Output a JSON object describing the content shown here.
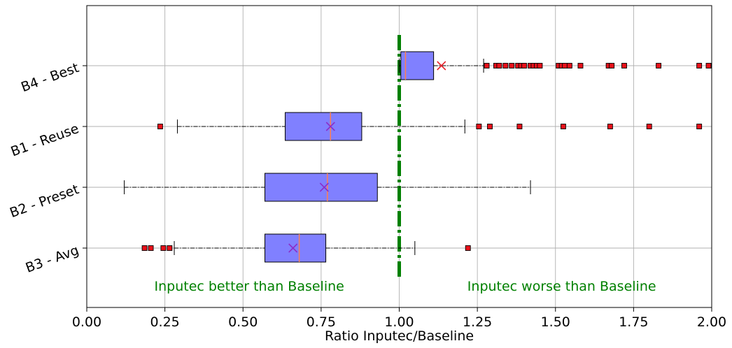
{
  "chart_data": {
    "type": "boxplot",
    "orientation": "horizontal",
    "xlabel": "Ratio Inputec/Baseline",
    "xlim": [
      0.0,
      2.0
    ],
    "xticks": [
      "0.00",
      "0.25",
      "0.50",
      "0.75",
      "1.00",
      "1.25",
      "1.50",
      "1.75",
      "2.00"
    ],
    "grid": true,
    "reference_line": {
      "x": 1.0,
      "color": "#008000",
      "style": "dash-dot"
    },
    "annotations": [
      {
        "text": "Inputec better than Baseline",
        "x": 0.52,
        "color": "#008000"
      },
      {
        "text": "Inputec worse than Baseline",
        "x": 1.52,
        "color": "#008000"
      }
    ],
    "colors": {
      "box_fill": "#8080ff",
      "box_edge": "#000000",
      "median": "#ff7f50",
      "mean_marker": "#8b2fc9",
      "mean_marker_b4": "#e8202a",
      "flier": "#e8101a",
      "grid": "#b0b0b0"
    },
    "categories": [
      "B4 - Best",
      "B1 - Reuse",
      "B2 - Preset",
      "B3 - Avg"
    ],
    "boxes": [
      {
        "name": "B4 - Best",
        "whisker_low": 1.0,
        "q1": 1.005,
        "median": 1.02,
        "q3": 1.11,
        "whisker_high": 1.27,
        "mean": 1.135,
        "fliers": [
          1.28,
          1.31,
          1.32,
          1.34,
          1.36,
          1.38,
          1.39,
          1.4,
          1.42,
          1.43,
          1.44,
          1.45,
          1.51,
          1.52,
          1.53,
          1.545,
          1.58,
          1.67,
          1.68,
          1.72,
          1.83,
          1.96,
          1.99
        ]
      },
      {
        "name": "B1 - Reuse",
        "whisker_low": 0.29,
        "q1": 0.635,
        "median": 0.78,
        "q3": 0.88,
        "whisker_high": 1.21,
        "mean": 0.78,
        "fliers": [
          0.235,
          1.255,
          1.29,
          1.385,
          1.525,
          1.675,
          1.8,
          1.96
        ]
      },
      {
        "name": "B2 - Preset",
        "whisker_low": 0.12,
        "q1": 0.57,
        "median": 0.77,
        "q3": 0.93,
        "whisker_high": 1.42,
        "mean": 0.76,
        "fliers": []
      },
      {
        "name": "B3 - Avg",
        "whisker_low": 0.28,
        "q1": 0.57,
        "median": 0.68,
        "q3": 0.765,
        "whisker_high": 1.05,
        "mean": 0.66,
        "fliers": [
          0.185,
          0.205,
          0.245,
          0.265,
          1.22
        ]
      }
    ]
  }
}
